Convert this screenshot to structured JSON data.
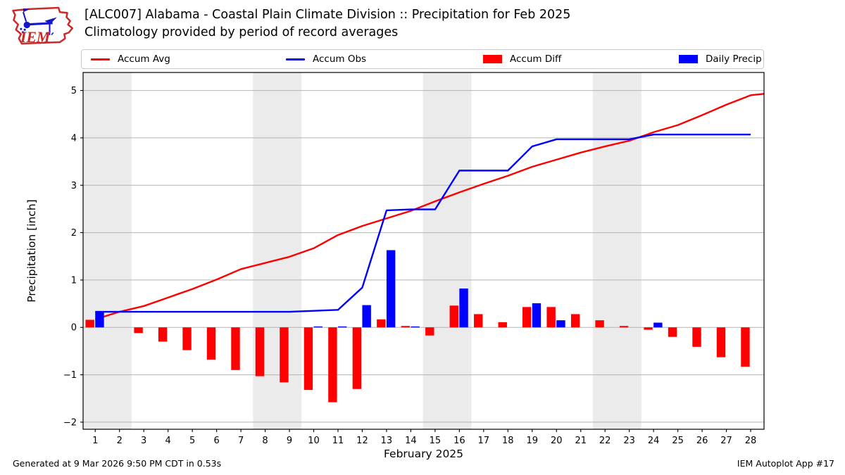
{
  "header": {
    "title_line1": "[ALC007] Alabama - Coastal Plain Climate Division :: Precipitation for Feb 2025",
    "title_line2": "Climatology provided by period of record averages",
    "logo_text": "IEM"
  },
  "legend": {
    "items": [
      {
        "label": "Accum Avg",
        "swatch": "line",
        "color": "#ff0000"
      },
      {
        "label": "Accum Obs",
        "swatch": "line",
        "color": "#0000ff"
      },
      {
        "label": "Accum Diff",
        "swatch": "rect",
        "color": "#ff0000"
      },
      {
        "label": "Daily Precip",
        "swatch": "rect",
        "color": "#0000ff"
      }
    ]
  },
  "footer": {
    "generated_text": "Generated at 9 Mar 2026 9:50 PM CDT in 0.53s",
    "app_text": "IEM Autoplot App #17"
  },
  "chart_data": {
    "type": "bar",
    "xlabel": "February 2025",
    "ylabel": "Precipitation [inch]",
    "x": [
      1,
      2,
      3,
      4,
      5,
      6,
      7,
      8,
      9,
      10,
      11,
      12,
      13,
      14,
      15,
      16,
      17,
      18,
      19,
      20,
      21,
      22,
      23,
      24,
      25,
      26,
      27,
      28
    ],
    "xlim": [
      0.5,
      28.55
    ],
    "ylim": [
      -2.15,
      5.38
    ],
    "yticks": [
      -2,
      -1,
      0,
      1,
      2,
      3,
      4,
      5
    ],
    "weekend_bands": [
      [
        0.5,
        2.5
      ],
      [
        7.5,
        9.5
      ],
      [
        14.5,
        16.5
      ],
      [
        21.5,
        23.5
      ]
    ],
    "grid": "horizontal",
    "legend_position": "top",
    "series": [
      {
        "name": "Accum Avg",
        "type": "line",
        "color": "#ff0000",
        "values": [
          0.17,
          0.33,
          0.45,
          0.63,
          0.81,
          1.01,
          1.23,
          1.36,
          1.49,
          1.67,
          1.95,
          2.14,
          2.3,
          2.46,
          2.66,
          2.85,
          3.03,
          3.2,
          3.39,
          3.54,
          3.69,
          3.82,
          3.94,
          4.12,
          4.27,
          4.48,
          4.7,
          4.9
        ]
      },
      {
        "name": "Accum Obs",
        "type": "line",
        "color": "#0000ff",
        "values": [
          0.33,
          0.33,
          0.33,
          0.33,
          0.33,
          0.33,
          0.33,
          0.33,
          0.33,
          0.35,
          0.37,
          0.84,
          2.47,
          2.49,
          2.49,
          3.31,
          3.31,
          3.31,
          3.82,
          3.97,
          3.97,
          3.97,
          3.97,
          4.07,
          4.07,
          4.07,
          4.07,
          4.07
        ]
      },
      {
        "name": "Accum Diff",
        "type": "bar",
        "color": "#ff0000",
        "values": [
          0.16,
          0.0,
          -0.12,
          -0.3,
          -0.48,
          -0.68,
          -0.9,
          -1.03,
          -1.16,
          -1.32,
          -1.58,
          -1.3,
          0.17,
          0.03,
          -0.17,
          0.46,
          0.28,
          0.11,
          0.43,
          0.43,
          0.28,
          0.15,
          0.03,
          -0.05,
          -0.2,
          -0.41,
          -0.63,
          -0.83
        ]
      },
      {
        "name": "Daily Precip",
        "type": "bar",
        "color": "#0000ff",
        "values": [
          0.33,
          0,
          0,
          0,
          0,
          0,
          0,
          0,
          0,
          0.02,
          0.02,
          0.47,
          1.63,
          0.02,
          0,
          0.82,
          0,
          0,
          0.51,
          0.15,
          0,
          0,
          0,
          0.1,
          0,
          0,
          0,
          0
        ]
      }
    ],
    "avg_line_end": {
      "x": 28.55,
      "y": 4.93
    },
    "colors": {
      "weekend_band": "#ebebeb",
      "grid": "#b4b4b4",
      "spine": "#000000"
    }
  }
}
